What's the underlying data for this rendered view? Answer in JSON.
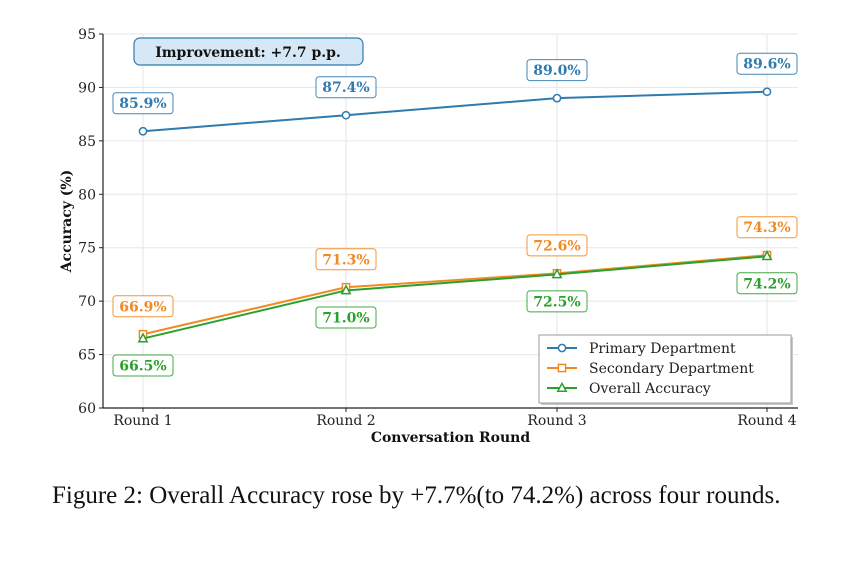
{
  "chart_data": {
    "type": "line",
    "categories": [
      "Round 1",
      "Round 2",
      "Round 3",
      "Round 4"
    ],
    "series": [
      {
        "name": "Primary Department",
        "values": [
          85.9,
          87.4,
          89.0,
          89.6
        ],
        "labels": [
          "85.9%",
          "87.4%",
          "89.0%",
          "89.6%"
        ],
        "color": "#2f7bb0",
        "marker": "circle",
        "label_position": "above"
      },
      {
        "name": "Secondary Department",
        "values": [
          66.9,
          71.3,
          72.6,
          74.3
        ],
        "labels": [
          "66.9%",
          "71.3%",
          "72.6%",
          "74.3%"
        ],
        "color": "#f28a22",
        "marker": "square",
        "label_position": "above"
      },
      {
        "name": "Overall Accuracy",
        "values": [
          66.5,
          71.0,
          72.5,
          74.2
        ],
        "labels": [
          "66.5%",
          "71.0%",
          "72.5%",
          "74.2%"
        ],
        "color": "#2ca02c",
        "marker": "triangle",
        "label_position": "below"
      }
    ],
    "xlabel": "Conversation Round",
    "ylabel": "Accuracy (%)",
    "ylim": [
      60,
      95
    ],
    "yticks": [
      60,
      65,
      70,
      75,
      80,
      85,
      90,
      95
    ],
    "grid": true,
    "legend_position": "lower-right",
    "annotation": "Improvement: +7.7 p.p."
  },
  "caption": {
    "text": "Figure 2: Overall Accuracy rose by +7.7%(to 74.2%) across four rounds."
  }
}
